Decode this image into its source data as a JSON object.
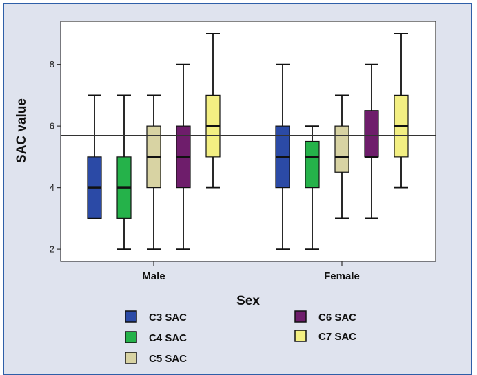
{
  "chart_data": {
    "type": "box",
    "xlabel": "Sex",
    "ylabel": "SAC value",
    "ylim": [
      1.6,
      9.4
    ],
    "yticks": [
      2,
      4,
      6,
      8
    ],
    "categories": [
      "Male",
      "Female"
    ],
    "reference_line": 5.7,
    "series": [
      {
        "name": "C3 SAC",
        "color": "#2b4aa6",
        "boxes": [
          {
            "min": 3,
            "q1": 3,
            "median": 4,
            "q3": 5,
            "max": 7
          },
          {
            "min": 2,
            "q1": 4,
            "median": 5,
            "q3": 6,
            "max": 8
          }
        ]
      },
      {
        "name": "C4 SAC",
        "color": "#25b24a",
        "boxes": [
          {
            "min": 2,
            "q1": 3,
            "median": 4,
            "q3": 5,
            "max": 7
          },
          {
            "min": 2,
            "q1": 4,
            "median": 5,
            "q3": 5.5,
            "max": 6
          }
        ]
      },
      {
        "name": "C5 SAC",
        "color": "#d8d3a3",
        "boxes": [
          {
            "min": 2,
            "q1": 4,
            "median": 5,
            "q3": 6,
            "max": 7
          },
          {
            "min": 3,
            "q1": 4.5,
            "median": 5,
            "q3": 6,
            "max": 7
          }
        ]
      },
      {
        "name": "C6 SAC",
        "color": "#6e1d6b",
        "boxes": [
          {
            "min": 2,
            "q1": 4,
            "median": 5,
            "q3": 6,
            "max": 8
          },
          {
            "min": 3,
            "q1": 5,
            "median": 5,
            "q3": 6.5,
            "max": 8
          }
        ]
      },
      {
        "name": "C7 SAC",
        "color": "#f3ef82",
        "boxes": [
          {
            "min": 4,
            "q1": 5,
            "median": 6,
            "q3": 7,
            "max": 9
          },
          {
            "min": 4,
            "q1": 5,
            "median": 6,
            "q3": 7,
            "max": 9
          }
        ]
      }
    ]
  }
}
